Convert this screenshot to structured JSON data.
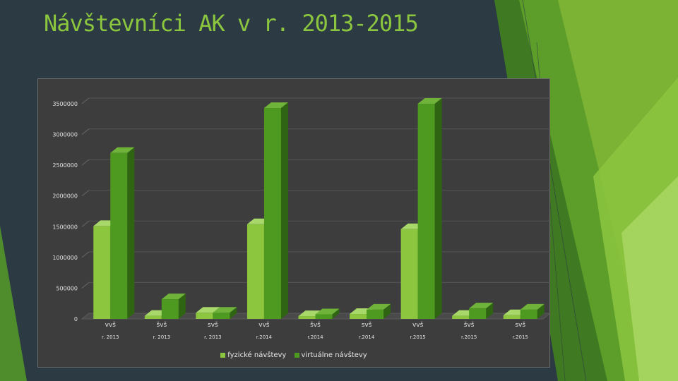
{
  "slide": {
    "title": "Návštevníci AK v r. 2013-2015"
  },
  "colors": {
    "background": "#2b3a43",
    "title": "#8cc63f",
    "plot": "#3d3d3d",
    "fyzicke": "#8cc63f",
    "virtualne": "#4e9a20"
  },
  "chart_data": {
    "type": "bar",
    "title": "",
    "categories": [
      {
        "top": "vvš",
        "bottom": "r. 2013"
      },
      {
        "top": "švš",
        "bottom": "r. 2013"
      },
      {
        "top": "svš",
        "bottom": "r. 2013"
      },
      {
        "top": "vvš",
        "bottom": "r.2014"
      },
      {
        "top": "švš",
        "bottom": "r.2014"
      },
      {
        "top": "svš",
        "bottom": "r.2014"
      },
      {
        "top": "vvš",
        "bottom": "r.2015"
      },
      {
        "top": "švš",
        "bottom": "r.2015"
      },
      {
        "top": "svš",
        "bottom": "r.2015"
      }
    ],
    "series": [
      {
        "name": "fyzické návštevy",
        "values": [
          1510000,
          50000,
          100000,
          1540000,
          45000,
          80000,
          1460000,
          50000,
          60000
        ]
      },
      {
        "name": "virtuálne návštevy",
        "values": [
          2700000,
          320000,
          100000,
          3430000,
          75000,
          150000,
          3500000,
          170000,
          150000
        ]
      }
    ],
    "ylim": [
      0,
      3500000
    ],
    "yticks": [
      "3500000",
      "3000000",
      "2500000",
      "2000000",
      "1500000",
      "1000000",
      "500000",
      "0"
    ],
    "grid": true,
    "legend": "bottom",
    "style": "3d-column"
  }
}
